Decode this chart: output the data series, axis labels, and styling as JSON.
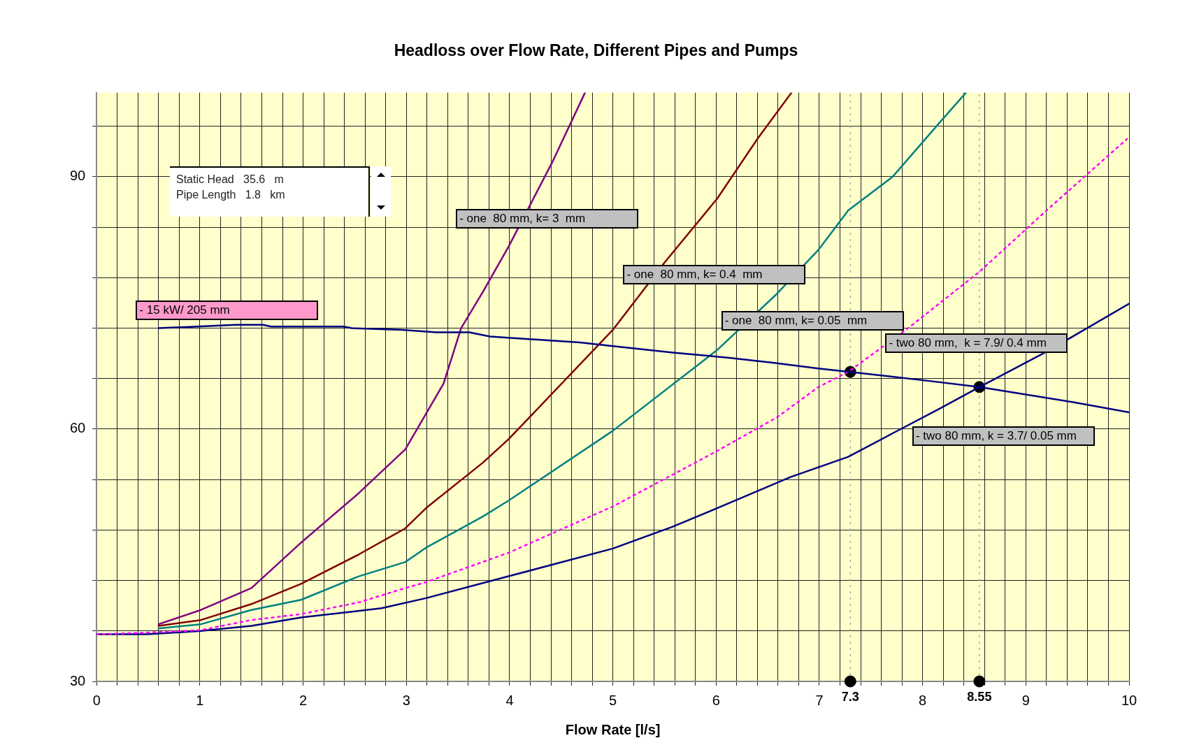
{
  "chart_data": {
    "type": "line",
    "title": "Headloss over Flow Rate, Different Pipes and Pumps",
    "xlabel": "Flow Rate [l/s]",
    "xlim": [
      0,
      10
    ],
    "ylim": [
      30,
      100
    ],
    "xticks": [
      0,
      {
        "value": 0.2,
        "label": null
      },
      {
        "value": 0.4,
        "label": null
      },
      {
        "value": 0.6,
        "label": null
      },
      {
        "value": 0.8,
        "label": null
      },
      1,
      {
        "value": 1.2,
        "label": null
      },
      {
        "value": 1.4,
        "label": null
      },
      {
        "value": 1.6,
        "label": null
      },
      {
        "value": 1.8,
        "label": null
      },
      2,
      {
        "value": 2.2,
        "label": null
      },
      {
        "value": 2.4,
        "label": null
      },
      {
        "value": 2.6,
        "label": null
      },
      {
        "value": 2.8,
        "label": null
      },
      3,
      {
        "value": 3.2,
        "label": null
      },
      {
        "value": 3.4,
        "label": null
      },
      {
        "value": 3.6,
        "label": null
      },
      {
        "value": 3.8,
        "label": null
      },
      4,
      {
        "value": 4.2,
        "label": null
      },
      {
        "value": 4.4,
        "label": null
      },
      {
        "value": 4.6,
        "label": null
      },
      {
        "value": 4.8,
        "label": null
      },
      5,
      {
        "value": 5.2,
        "label": null
      },
      {
        "value": 5.4,
        "label": null
      },
      {
        "value": 5.6,
        "label": null
      },
      {
        "value": 5.8,
        "label": null
      },
      6,
      {
        "value": 6.2,
        "label": null
      },
      {
        "value": 6.4,
        "label": null
      },
      {
        "value": 6.6,
        "label": null
      },
      {
        "value": 6.8,
        "label": null
      },
      7,
      {
        "value": 7.2,
        "label": null
      },
      {
        "value": 7.4,
        "label": null
      },
      {
        "value": 7.6,
        "label": null
      },
      {
        "value": 7.8,
        "label": null
      },
      8,
      {
        "value": 8.2,
        "label": null
      },
      {
        "value": 8.4,
        "label": null
      },
      {
        "value": 8.6,
        "label": null
      },
      {
        "value": 8.8,
        "label": null
      },
      9,
      {
        "value": 9.2,
        "label": null
      },
      {
        "value": 9.4,
        "label": null
      },
      {
        "value": 9.6,
        "label": null
      },
      {
        "value": 9.8,
        "label": null
      },
      10
    ],
    "yticks": [
      30,
      {
        "value": 36,
        "label": null
      },
      {
        "value": 42,
        "label": null
      },
      {
        "value": 48,
        "label": null
      },
      {
        "value": 54,
        "label": null
      },
      60,
      {
        "value": 66,
        "label": null
      },
      {
        "value": 72,
        "label": null
      },
      {
        "value": 78,
        "label": null
      },
      {
        "value": 84,
        "label": null
      },
      90,
      {
        "value": 96,
        "label": null
      }
    ],
    "grid": true,
    "legend": false,
    "series": [
      {
        "name": "- 15 kW/ 205 mm",
        "color": "#000080",
        "marker": "none",
        "line_style": "solid",
        "x": [
          0.6,
          1.35,
          1.61,
          1.69,
          2.39,
          2.47,
          2.96,
          3.29,
          3.61,
          3.81,
          4.68,
          4.97,
          5.58,
          6.11,
          6.55,
          6.99,
          7.3,
          8.08,
          8.55,
          9.46,
          10
        ],
        "values": [
          72.0,
          72.4,
          72.4,
          72.2,
          72.2,
          72.0,
          71.8,
          71.5,
          71.5,
          71.0,
          70.3,
          69.9,
          69.1,
          68.5,
          67.9,
          67.2,
          66.8,
          65.7,
          65.0,
          63.2,
          62.0
        ]
      },
      {
        "name": "- one  80 mm, k= 3  mm",
        "color": "#800080",
        "marker": "none",
        "line_style": "solid",
        "x": [
          0.6,
          1.01,
          1.5,
          1.98,
          2.54,
          2.99,
          3.36,
          3.53,
          3.74,
          3.99,
          4.42,
          4.73
        ],
        "values": [
          36.8,
          38.5,
          41.1,
          46.5,
          52.4,
          57.6,
          65.4,
          72.0,
          76.3,
          81.7,
          91.9,
          100
        ]
      },
      {
        "name": "- one  80 mm, k= 0.4  mm",
        "color": "#800000",
        "marker": "none",
        "line_style": "solid",
        "x": [
          0.6,
          1.01,
          1.5,
          1.98,
          2.54,
          2.99,
          3.19,
          3.74,
          3.99,
          5.0,
          5.5,
          6.01,
          6.4,
          6.73
        ],
        "values": [
          36.6,
          37.3,
          39.2,
          41.6,
          45.1,
          48.2,
          50.6,
          56.0,
          58.8,
          71.8,
          79.8,
          87.4,
          94.5,
          100
        ]
      },
      {
        "name": "- one  80 mm, k= 0.05  mm",
        "color": "#008080",
        "marker": "none",
        "line_style": "solid",
        "x": [
          0.6,
          1.01,
          1.5,
          1.98,
          2.54,
          2.99,
          3.19,
          3.74,
          3.99,
          5.0,
          6.01,
          6.59,
          6.99,
          7.28,
          7.71,
          8.19,
          8.42
        ],
        "values": [
          36.3,
          36.8,
          38.5,
          39.7,
          42.5,
          44.2,
          45.9,
          49.6,
          51.5,
          59.8,
          69.4,
          76.1,
          81.3,
          86.0,
          90.0,
          96.8,
          100
        ]
      },
      {
        "name": "- two 80 mm,  k = 7.9/ 0.4 mm",
        "color": "#ff00ff",
        "marker": "none",
        "line_style": "dotted",
        "x": [
          0,
          0.49,
          1.01,
          1.5,
          1.98,
          2.54,
          2.99,
          3.19,
          3.99,
          5.0,
          6.01,
          6.59,
          6.99,
          7.28,
          7.86,
          8.55,
          9.2,
          9.98
        ],
        "values": [
          35.6,
          35.8,
          36.1,
          37.3,
          38.0,
          39.4,
          41.1,
          41.8,
          45.3,
          50.8,
          57.4,
          61.4,
          65.0,
          66.8,
          72.0,
          78.7,
          86.0,
          94.5
        ]
      },
      {
        "name": "- two 80 mm, k = 3.7/ 0.05 mm",
        "color": "#000080",
        "marker": "none",
        "line_style": "solid",
        "x": [
          0,
          0.49,
          1.01,
          1.5,
          1.98,
          2.76,
          3.19,
          3.99,
          5.0,
          5.58,
          6.01,
          6.72,
          7.28,
          7.71,
          8.16,
          8.55,
          9.2,
          10
        ],
        "values": [
          35.6,
          35.6,
          36.0,
          36.6,
          37.6,
          38.7,
          39.9,
          42.5,
          45.8,
          48.4,
          50.6,
          54.3,
          56.7,
          59.5,
          62.4,
          65.0,
          69.2,
          74.9
        ]
      },
      {
        "type": "scatter",
        "color": "#000000",
        "marker": "circle",
        "x": [
          7.3,
          7.3,
          8.55,
          8.55
        ],
        "values": [
          66.8,
          30,
          65.0,
          30
        ]
      }
    ],
    "ref_lines": [
      {
        "axis": "x",
        "value": 7.3,
        "label": "7.3",
        "color": "#999999",
        "line_style": "dotted"
      },
      {
        "axis": "x",
        "value": 8.55,
        "label": "8.55",
        "color": "#999999",
        "line_style": "dotted"
      }
    ],
    "annotations": [
      "Static Head   35.6   m",
      "Pipe Length   1.8   km"
    ]
  }
}
